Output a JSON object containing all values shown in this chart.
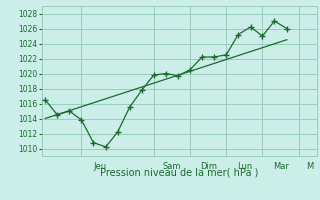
{
  "background_color": "#cceee8",
  "grid_color": "#99ccbb",
  "line_color": "#1a6b2e",
  "marker_color": "#1a6b2e",
  "xlabel": "Pression niveau de la mer( hPa )",
  "ylim": [
    1009,
    1029
  ],
  "yticks": [
    1010,
    1012,
    1014,
    1016,
    1018,
    1020,
    1022,
    1024,
    1026,
    1028
  ],
  "x_day_labels": [
    {
      "label": "Jeu",
      "x": 1.5
    },
    {
      "label": "Sam",
      "x": 3.5
    },
    {
      "label": "Dim",
      "x": 4.5
    },
    {
      "label": "Lun",
      "x": 5.5
    },
    {
      "label": "Mar",
      "x": 6.5
    },
    {
      "label": "M",
      "x": 7.3
    }
  ],
  "x_vlines": [
    1.0,
    3.0,
    4.0,
    5.0,
    6.0,
    7.0
  ],
  "series1_x": [
    0.0,
    0.33,
    0.67,
    1.0,
    1.33,
    1.67,
    2.0,
    2.33,
    2.67,
    3.0,
    3.33,
    3.67,
    4.0,
    4.33,
    4.67,
    5.0,
    5.33,
    5.67,
    6.0,
    6.33,
    6.67
  ],
  "series1_y": [
    1016.5,
    1014.5,
    1015.0,
    1013.8,
    1010.8,
    1010.2,
    1012.2,
    1015.5,
    1017.8,
    1019.8,
    1020.0,
    1019.7,
    1020.5,
    1022.2,
    1022.2,
    1022.5,
    1025.2,
    1026.2,
    1025.0,
    1027.0,
    1026.0
  ],
  "series2_x": [
    0.0,
    6.67
  ],
  "series2_y": [
    1014.0,
    1024.5
  ],
  "xlim": [
    -0.1,
    7.5
  ]
}
